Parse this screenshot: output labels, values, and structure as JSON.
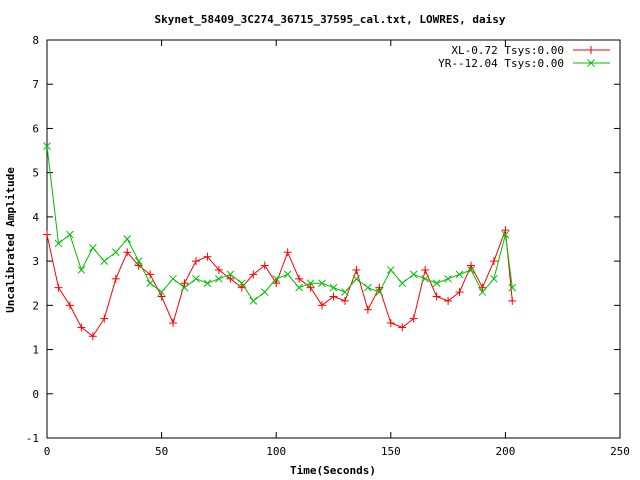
{
  "chart_data": {
    "type": "line",
    "title": "Skynet_58409_3C274_36715_37595_cal.txt, LOWRES, daisy",
    "xlabel": "Time(Seconds)",
    "ylabel": "Uncalibrated Amplitude",
    "xlim": [
      0,
      250
    ],
    "ylim": [
      -1,
      8
    ],
    "xticks": [
      0,
      50,
      100,
      150,
      200,
      250
    ],
    "yticks": [
      -1,
      0,
      1,
      2,
      3,
      4,
      5,
      6,
      7,
      8
    ],
    "grid": false,
    "legend_position": "top-right",
    "series": [
      {
        "name": "XL-0.72 Tsys:0.00",
        "color": "#ff0000",
        "marker": "plus",
        "x": [
          0,
          5,
          10,
          15,
          20,
          25,
          30,
          35,
          40,
          45,
          50,
          55,
          60,
          65,
          70,
          75,
          80,
          85,
          90,
          95,
          100,
          105,
          110,
          115,
          120,
          125,
          130,
          135,
          140,
          145,
          150,
          155,
          160,
          165,
          170,
          175,
          180,
          185,
          190,
          195,
          200,
          203
        ],
        "y": [
          3.6,
          2.4,
          2.0,
          1.5,
          1.3,
          1.7,
          2.6,
          3.2,
          2.9,
          2.7,
          2.2,
          1.6,
          2.5,
          3.0,
          3.1,
          2.8,
          2.6,
          2.4,
          2.7,
          2.9,
          2.5,
          3.2,
          2.6,
          2.4,
          2.0,
          2.2,
          2.1,
          2.8,
          1.9,
          2.4,
          1.6,
          1.5,
          1.7,
          2.8,
          2.2,
          2.1,
          2.3,
          2.9,
          2.4,
          3.0,
          3.7,
          2.1
        ]
      },
      {
        "name": "YR--12.04 Tsys:0.00",
        "color": "#00c000",
        "marker": "cross",
        "x": [
          0,
          5,
          10,
          15,
          20,
          25,
          30,
          35,
          40,
          45,
          50,
          55,
          60,
          65,
          70,
          75,
          80,
          85,
          90,
          95,
          100,
          105,
          110,
          115,
          120,
          125,
          130,
          135,
          140,
          145,
          150,
          155,
          160,
          165,
          170,
          175,
          180,
          185,
          190,
          195,
          200,
          203
        ],
        "y": [
          5.6,
          3.4,
          3.6,
          2.8,
          3.3,
          3.0,
          3.2,
          3.5,
          3.0,
          2.5,
          2.3,
          2.6,
          2.4,
          2.6,
          2.5,
          2.6,
          2.7,
          2.5,
          2.1,
          2.3,
          2.6,
          2.7,
          2.4,
          2.5,
          2.5,
          2.4,
          2.3,
          2.6,
          2.4,
          2.3,
          2.8,
          2.5,
          2.7,
          2.6,
          2.5,
          2.6,
          2.7,
          2.8,
          2.3,
          2.6,
          3.6,
          2.4
        ]
      }
    ]
  }
}
